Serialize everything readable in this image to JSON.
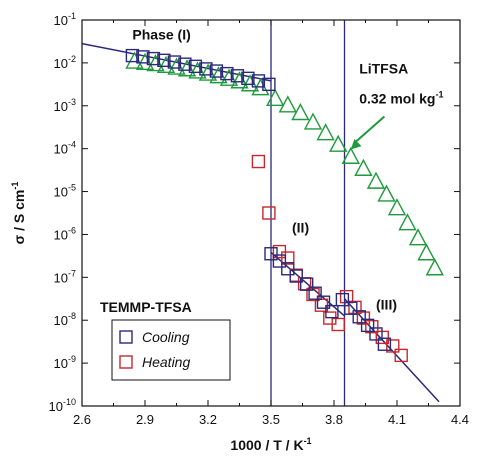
{
  "chart_data": {
    "type": "scatter",
    "xlabel": "1000 / T / K-1",
    "ylabel": "σ / S cm-1",
    "xlim": [
      2.6,
      4.4
    ],
    "ylim_log10": [
      -10,
      -1
    ],
    "yscale": "log",
    "x_ticks": [
      "2.6",
      "2.9",
      "3.2",
      "3.5",
      "3.8",
      "4.1",
      "4.4"
    ],
    "y_ticks": [
      "10-10",
      "10-9",
      "10-8",
      "10-7",
      "10-6",
      "10-5",
      "10-4",
      "10-3",
      "10-2",
      "10-1"
    ],
    "vertical_lines": [
      3.5,
      3.85
    ],
    "annotations": {
      "phase1": "Phase (I)",
      "phase2": "(II)",
      "phase3": "(III)",
      "salt_name": "LiTFSA",
      "salt_conc": "0.32 mol kg-1"
    },
    "legend": {
      "title": "TEMMP-TFSA",
      "placement": "bottom-left"
    },
    "colors": {
      "cooling": "#2b2a7a",
      "heating": "#c8282d",
      "litfsa": "#1f9a3c",
      "fit": "#2b2a7a"
    },
    "series": [
      {
        "name": "Cooling",
        "marker": "square",
        "points": [
          [
            2.84,
            -1.83
          ],
          [
            2.89,
            -1.86
          ],
          [
            2.94,
            -1.9
          ],
          [
            2.99,
            -1.94
          ],
          [
            3.04,
            -1.98
          ],
          [
            3.09,
            -2.03
          ],
          [
            3.14,
            -2.08
          ],
          [
            3.19,
            -2.14
          ],
          [
            3.24,
            -2.19
          ],
          [
            3.29,
            -2.25
          ],
          [
            3.34,
            -2.3
          ],
          [
            3.39,
            -2.36
          ],
          [
            3.44,
            -2.42
          ],
          [
            3.49,
            -2.5
          ],
          [
            3.5,
            -6.45
          ],
          [
            3.54,
            -6.62
          ],
          [
            3.58,
            -6.8
          ],
          [
            3.62,
            -6.97
          ],
          [
            3.67,
            -7.16
          ],
          [
            3.71,
            -7.37
          ],
          [
            3.75,
            -7.58
          ],
          [
            3.79,
            -7.8
          ],
          [
            3.84,
            -7.52
          ],
          [
            3.88,
            -7.72
          ],
          [
            3.92,
            -7.92
          ],
          [
            3.96,
            -8.12
          ],
          [
            4.0,
            -8.32
          ],
          [
            4.04,
            -8.56
          ]
        ]
      },
      {
        "name": "Heating",
        "marker": "square",
        "points": [
          [
            3.44,
            -4.3
          ],
          [
            3.49,
            -5.5
          ],
          [
            3.54,
            -6.4
          ],
          [
            3.58,
            -6.55
          ],
          [
            3.62,
            -6.95
          ],
          [
            3.66,
            -7.15
          ],
          [
            3.7,
            -7.4
          ],
          [
            3.74,
            -7.65
          ],
          [
            3.78,
            -7.95
          ],
          [
            3.82,
            -8.1
          ],
          [
            3.86,
            -7.45
          ],
          [
            3.9,
            -7.7
          ],
          [
            3.94,
            -7.95
          ],
          [
            3.98,
            -8.15
          ],
          [
            4.03,
            -8.4
          ],
          [
            4.08,
            -8.6
          ],
          [
            4.12,
            -8.82
          ]
        ]
      },
      {
        "name": "LiTFSA 0.32 mol kg-1",
        "marker": "triangle",
        "points": [
          [
            2.85,
            -1.98
          ],
          [
            2.9,
            -2.01
          ],
          [
            2.95,
            -2.04
          ],
          [
            3.0,
            -2.08
          ],
          [
            3.05,
            -2.12
          ],
          [
            3.1,
            -2.16
          ],
          [
            3.15,
            -2.21
          ],
          [
            3.2,
            -2.26
          ],
          [
            3.25,
            -2.32
          ],
          [
            3.3,
            -2.38
          ],
          [
            3.35,
            -2.44
          ],
          [
            3.4,
            -2.51
          ],
          [
            3.45,
            -2.6
          ],
          [
            3.52,
            -2.85
          ],
          [
            3.58,
            -3.0
          ],
          [
            3.64,
            -3.18
          ],
          [
            3.7,
            -3.4
          ],
          [
            3.76,
            -3.65
          ],
          [
            3.82,
            -3.92
          ],
          [
            3.88,
            -4.2
          ],
          [
            3.94,
            -4.48
          ],
          [
            4.0,
            -4.78
          ],
          [
            4.05,
            -5.08
          ],
          [
            4.1,
            -5.4
          ],
          [
            4.15,
            -5.75
          ],
          [
            4.2,
            -6.1
          ],
          [
            4.24,
            -6.45
          ],
          [
            4.28,
            -6.8
          ]
        ]
      }
    ],
    "fit_lines": [
      {
        "points": [
          [
            2.6,
            -1.55
          ],
          [
            3.5,
            -2.42
          ]
        ]
      },
      {
        "points": [
          [
            3.5,
            -6.42
          ],
          [
            3.85,
            -7.9
          ]
        ]
      },
      {
        "points": [
          [
            3.85,
            -7.5
          ],
          [
            4.3,
            -9.9
          ]
        ]
      }
    ]
  }
}
